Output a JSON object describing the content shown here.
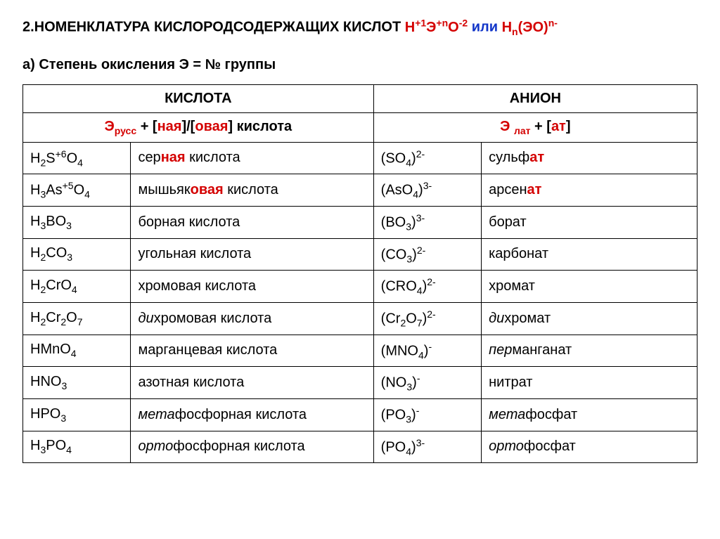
{
  "colors": {
    "red": "#d40000",
    "blue": "#1034c8",
    "black": "#000000",
    "background": "#ffffff"
  },
  "title": {
    "prefix": "2.НОМЕНКЛАТУРА КИСЛОРОДСОДЕРЖАЩИХ КИСЛОТ ",
    "f1_a": "H",
    "f1_sup1": "+1",
    "f1_b": "Э",
    "f1_sup2": "+n",
    "f1_c": "O",
    "f1_sup3": "-2",
    "or": " или ",
    "f2_a": "H",
    "f2_sub": "n",
    "f2_b": "(ЭО)",
    "f2_sup": "n-"
  },
  "subtitle": "а) Степень окисления Э = № группы",
  "headers": {
    "acid": "КИСЛОТА",
    "anion": "АНИОН"
  },
  "rule": {
    "left_a": "Э",
    "left_sub": "русс",
    "left_b": " + [",
    "left_hl1": "ная",
    "left_c": "]/[",
    "left_hl2": "овая",
    "left_d": "] кислота",
    "right_a": "Э ",
    "right_sub": "лат",
    "right_b": "  + [",
    "right_hl": "ат",
    "right_c": "]"
  },
  "rows": [
    {
      "f_a": "H",
      "f_s1": "2",
      "f_b": "S",
      "f_sup": "+6",
      "f_c": "O",
      "f_s2": "4",
      "n_a": "сер",
      "n_hl": "ная",
      "n_b": " кислота",
      "italic": false,
      "af_a": "(SO",
      "af_s1": "4",
      "af_b": ")",
      "af_sup": "2-",
      "an_a": "сульф",
      "an_hl": "ат",
      "an_b": ""
    },
    {
      "f_a": "H",
      "f_s1": "3",
      "f_b": "As",
      "f_sup": "+5",
      "f_c": "O",
      "f_s2": "4",
      "n_a": "мышьяк",
      "n_hl": "овая",
      "n_b": " кислота",
      "italic": false,
      "af_a": "(AsO",
      "af_s1": "4",
      "af_b": ")",
      "af_sup": "3-",
      "an_a": "арсен",
      "an_hl": "ат",
      "an_b": ""
    },
    {
      "f_a": "H",
      "f_s1": "3",
      "f_b": "BO",
      "f_sup": "",
      "f_c": "",
      "f_s2": "3",
      "n_a": "борная кислота",
      "n_hl": "",
      "n_b": "",
      "italic": false,
      "af_a": "(BO",
      "af_s1": "3",
      "af_b": ")",
      "af_sup": "3-",
      "an_a": "борат",
      "an_hl": "",
      "an_b": ""
    },
    {
      "f_a": "H",
      "f_s1": "2",
      "f_b": "CO",
      "f_sup": "",
      "f_c": "",
      "f_s2": "3",
      "n_a": "угольная кислота",
      "n_hl": "",
      "n_b": "",
      "italic": false,
      "af_a": "(CO",
      "af_s1": "3",
      "af_b": ")",
      "af_sup": "2-",
      "an_a": "карбонат",
      "an_hl": "",
      "an_b": ""
    },
    {
      "f_a": "H",
      "f_s1": "2",
      "f_b": "CrO",
      "f_sup": "",
      "f_c": "",
      "f_s2": "4",
      "n_a": "хромовая кислота",
      "n_hl": "",
      "n_b": "",
      "italic": false,
      "af_a": "(CRO",
      "af_s1": "4",
      "af_b": ")",
      "af_sup": "2-",
      "an_a": "хромат",
      "an_hl": "",
      "an_b": ""
    },
    {
      "f_a": "H",
      "f_s1": "2",
      "f_b": "Cr",
      "f_sup": "",
      "f_m": "2",
      "f_c": "O",
      "f_s2": "7",
      "n_a": "ди",
      "n_hl": "",
      "n_b": "хромовая кислота",
      "italic": true,
      "af_a": "(Cr",
      "af_m": "2",
      "af_mid": "O",
      "af_s1": "7",
      "af_b": ")",
      "af_sup": "2-",
      "an_a": "ди",
      "an_hl": "",
      "an_b": "хромат",
      "an_italic": true
    },
    {
      "f_a": "HMnO",
      "f_s1": "4",
      "f_b": "",
      "f_sup": "",
      "f_c": "",
      "f_s2": "",
      "n_a": "марганцевая кислота",
      "n_hl": "",
      "n_b": "",
      "italic": false,
      "af_a": "(MNO",
      "af_s1": "4",
      "af_b": ")",
      "af_sup": "-",
      "an_a": "пер",
      "an_hl": "",
      "an_b": "манганат",
      "an_italic": true
    },
    {
      "f_a": "HNO",
      "f_s1": "3",
      "f_b": "",
      "f_sup": "",
      "f_c": "",
      "f_s2": "",
      "n_a": "азотная кислота",
      "n_hl": "",
      "n_b": "",
      "italic": false,
      "af_a": "(NO",
      "af_s1": "3",
      "af_b": ")",
      "af_sup": "-",
      "an_a": "нитрат",
      "an_hl": "",
      "an_b": ""
    },
    {
      "f_a": "HPO",
      "f_s1": "3",
      "f_b": "",
      "f_sup": "",
      "f_c": "",
      "f_s2": "",
      "n_a": "мета",
      "n_hl": "",
      "n_b": "фосфорная кислота",
      "italic": true,
      "af_a": "(PO",
      "af_s1": "3",
      "af_b": ")",
      "af_sup": "-",
      "an_a": "мета",
      "an_hl": "",
      "an_b": "фосфат",
      "an_italic": true
    },
    {
      "f_a": "H",
      "f_s1": "3",
      "f_b": "PO",
      "f_sup": "",
      "f_c": "",
      "f_s2": "4",
      "n_a": "орто",
      "n_hl": "",
      "n_b": "фосфорная кислота",
      "italic": true,
      "af_a": "(PO",
      "af_s1": "4",
      "af_b": ")",
      "af_sup": "3-",
      "an_a": "орто",
      "an_hl": "",
      "an_b": "фосфат",
      "an_italic": true
    }
  ]
}
